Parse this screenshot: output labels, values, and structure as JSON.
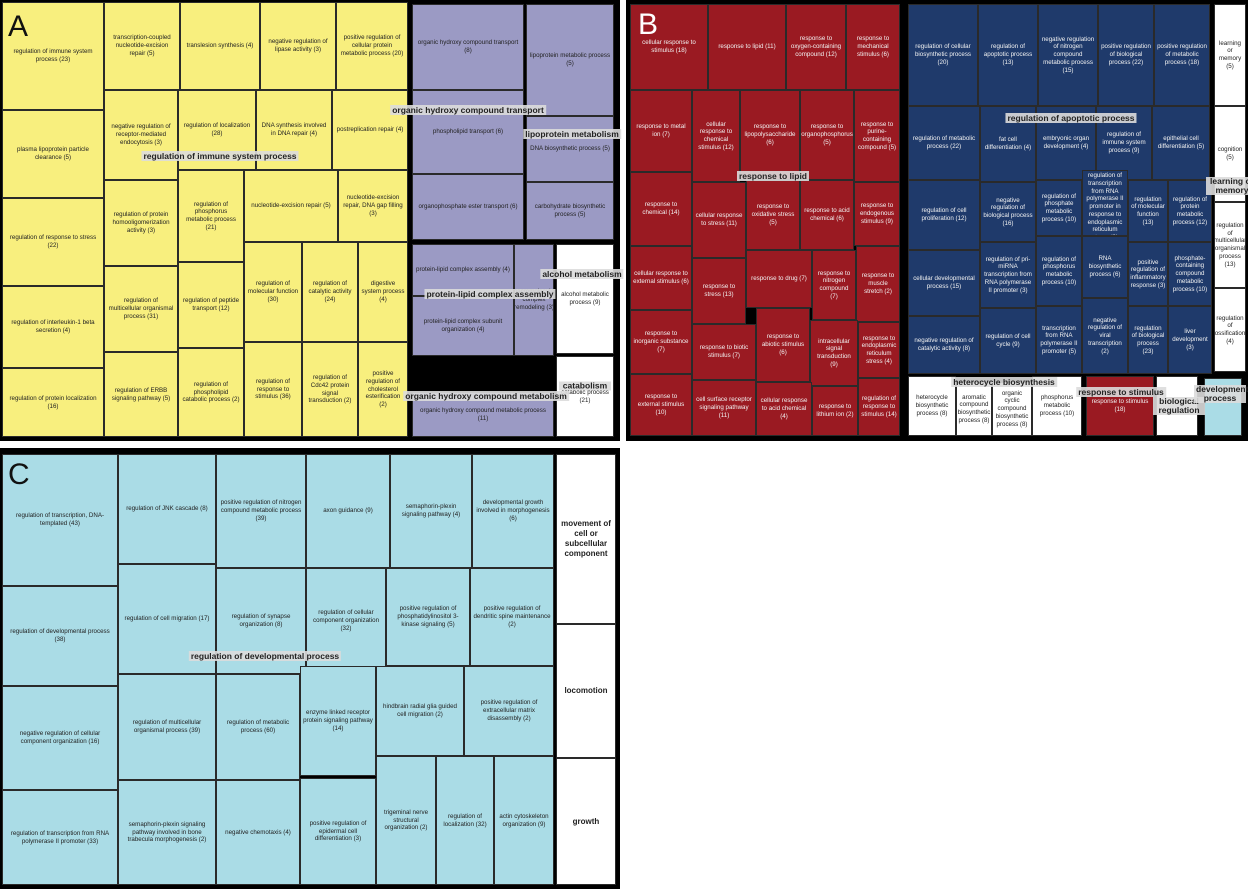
{
  "chart_data": [
    {
      "type": "treemap",
      "panel": "A",
      "cells": [
        {
          "label": "regulation of immune system process (23)",
          "color": "#f8ef7e"
        },
        {
          "label": "transcription-coupled nucleotide-excision repair (5)",
          "color": "#f8ef7e"
        },
        {
          "label": "translesion synthesis (4)",
          "color": "#f8ef7e"
        },
        {
          "label": "negative regulation of lipase activity (3)",
          "color": "#f8ef7e"
        },
        {
          "label": "positive regulation of cellular protein metabolic process (20)",
          "color": "#f8ef7e"
        },
        {
          "label": "plasma lipoprotein particle clearance (5)",
          "color": "#f8ef7e"
        },
        {
          "label": "negative regulation of receptor-mediated endocytosis (3)",
          "color": "#f8ef7e"
        },
        {
          "label": "regulation of localization (28)",
          "color": "#f8ef7e"
        },
        {
          "label": "DNA synthesis involved in DNA repair (4)",
          "color": "#f8ef7e"
        },
        {
          "label": "postreplication repair (4)",
          "color": "#f8ef7e"
        },
        {
          "label": "regulation of response to stress (22)",
          "color": "#f8ef7e"
        },
        {
          "label": "regulation of protein homooligomerization activity (3)",
          "color": "#f8ef7e"
        },
        {
          "label": "regulation of phosphorus metabolic process (21)",
          "color": "#f8ef7e"
        },
        {
          "label": "nucleotide-excision repair (5)",
          "color": "#f8ef7e"
        },
        {
          "label": "nucleotide-excision repair, DNA gap filling (3)",
          "color": "#f8ef7e"
        },
        {
          "label": "regulation of interleukin-1 beta secretion (4)",
          "color": "#f8ef7e"
        },
        {
          "label": "regulation of multicellular organismal process (31)",
          "color": "#f8ef7e"
        },
        {
          "label": "regulation of peptide transport (12)",
          "color": "#f8ef7e"
        },
        {
          "label": "regulation of molecular function (30)",
          "color": "#f8ef7e"
        },
        {
          "label": "regulation of catalytic activity (24)",
          "color": "#f8ef7e"
        },
        {
          "label": "digestive system process (4)",
          "color": "#f8ef7e"
        },
        {
          "label": "regulation of protein localization (16)",
          "color": "#f8ef7e"
        },
        {
          "label": "regulation of ERBB signaling pathway (5)",
          "color": "#f8ef7e"
        },
        {
          "label": "regulation of phospholipid catabolic process (2)",
          "color": "#f8ef7e"
        },
        {
          "label": "regulation of response to stimulus (36)",
          "color": "#f8ef7e"
        },
        {
          "label": "regulation of Cdc42 protein signal transduction (2)",
          "color": "#f8ef7e"
        },
        {
          "label": "positive regulation of cholesterol esterification (2)",
          "color": "#f8ef7e"
        },
        {
          "label": "organic hydroxy compound transport (8)",
          "color": "#9b9ac4"
        },
        {
          "label": "lipoprotein metabolic process (5)",
          "color": "#9b9ac4"
        },
        {
          "label": "phospholipid transport (6)",
          "color": "#9b9ac4"
        },
        {
          "label": "DNA biosynthetic process (5)",
          "color": "#9b9ac4"
        },
        {
          "label": "organophosphate ester transport (6)",
          "color": "#9b9ac4"
        },
        {
          "label": "carbohydrate biosynthetic process (5)",
          "color": "#9b9ac4"
        },
        {
          "label": "protein-lipid complex assembly (4)",
          "color": "#9b9ac4"
        },
        {
          "label": "macromolecular complex remodeling (3)",
          "color": "#9b9ac4"
        },
        {
          "label": "alcohol metabolic process (9)",
          "color": "#ffffff"
        },
        {
          "label": "protein-lipid complex subunit organization (4)",
          "color": "#9b9ac4"
        },
        {
          "label": "catabolic process (21)",
          "color": "#ffffff"
        },
        {
          "label": "organic hydroxy compound metabolic process (11)",
          "color": "#9b9ac4"
        }
      ],
      "groups": [
        "regulation of immune system process",
        "organic hydroxy compound transport",
        "lipoprotein metabolism",
        "protein-lipid complex assembly",
        "alcohol metabolism",
        "organic hydroxy compound metabolism",
        "catabolism"
      ]
    },
    {
      "type": "treemap",
      "panel": "B",
      "cells": [
        {
          "label": "cellular response to stimulus (18)",
          "color": "#9a1a22"
        },
        {
          "label": "response to lipid (11)",
          "color": "#9a1a22"
        },
        {
          "label": "response to oxygen-containing compound (12)",
          "color": "#9a1a22"
        },
        {
          "label": "response to mechanical stimulus (6)",
          "color": "#9a1a22"
        },
        {
          "label": "response to metal ion (7)",
          "color": "#9a1a22"
        },
        {
          "label": "cellular response to chemical stimulus (12)",
          "color": "#9a1a22"
        },
        {
          "label": "response to lipopolysaccharide (6)",
          "color": "#9a1a22"
        },
        {
          "label": "response to organophosphorus (5)",
          "color": "#9a1a22"
        },
        {
          "label": "response to purine-containing compound (5)",
          "color": "#9a1a22"
        },
        {
          "label": "response to chemical (14)",
          "color": "#9a1a22"
        },
        {
          "label": "cellular response to stress (11)",
          "color": "#9a1a22"
        },
        {
          "label": "response to oxidative stress (5)",
          "color": "#9a1a22"
        },
        {
          "label": "response to acid chemical (6)",
          "color": "#9a1a22"
        },
        {
          "label": "response to endogenous stimulus (9)",
          "color": "#9a1a22"
        },
        {
          "label": "cellular response to external stimulus (6)",
          "color": "#9a1a22"
        },
        {
          "label": "response to stress (13)",
          "color": "#9a1a22"
        },
        {
          "label": "response to drug (7)",
          "color": "#9a1a22"
        },
        {
          "label": "response to nitrogen compound (7)",
          "color": "#9a1a22"
        },
        {
          "label": "response to muscle stretch (2)",
          "color": "#9a1a22"
        },
        {
          "label": "response to inorganic substance (7)",
          "color": "#9a1a22"
        },
        {
          "label": "response to biotic stimulus (7)",
          "color": "#9a1a22"
        },
        {
          "label": "response to abiotic stimulus (6)",
          "color": "#9a1a22"
        },
        {
          "label": "intracellular signal transduction (9)",
          "color": "#9a1a22"
        },
        {
          "label": "response to endoplasmic reticulum stress (4)",
          "color": "#9a1a22"
        },
        {
          "label": "response to external stimulus (10)",
          "color": "#9a1a22"
        },
        {
          "label": "cell surface receptor signaling pathway (11)",
          "color": "#9a1a22"
        },
        {
          "label": "cellular response to acid chemical (4)",
          "color": "#9a1a22"
        },
        {
          "label": "response to lithium ion (2)",
          "color": "#9a1a22"
        },
        {
          "label": "regulation of response to stimulus (14)",
          "color": "#9a1a22"
        },
        {
          "label": "regulation of cellular biosynthetic process (20)",
          "color": "#1f3a6b"
        },
        {
          "label": "regulation of apoptotic process (13)",
          "color": "#1f3a6b"
        },
        {
          "label": "negative regulation of nitrogen compound metabolic process (15)",
          "color": "#1f3a6b"
        },
        {
          "label": "positive regulation of biological process (22)",
          "color": "#1f3a6b"
        },
        {
          "label": "positive regulation of metabolic process (18)",
          "color": "#1f3a6b"
        },
        {
          "label": "learning or memory (5)",
          "color": "#ffffff"
        },
        {
          "label": "regulation of metabolic process (22)",
          "color": "#1f3a6b"
        },
        {
          "label": "fat cell differentiation (4)",
          "color": "#1f3a6b"
        },
        {
          "label": "embryonic organ development (4)",
          "color": "#1f3a6b"
        },
        {
          "label": "regulation of immune system process (9)",
          "color": "#1f3a6b"
        },
        {
          "label": "epithelial cell differentiation (5)",
          "color": "#1f3a6b"
        },
        {
          "label": "cognition (5)",
          "color": "#ffffff"
        },
        {
          "label": "regulation of cell proliferation (12)",
          "color": "#1f3a6b"
        },
        {
          "label": "negative regulation of biological process (16)",
          "color": "#1f3a6b"
        },
        {
          "label": "regulation of phosphate metabolic process (10)",
          "color": "#1f3a6b"
        },
        {
          "label": "positive regulation of transcription from RNA polymerase II promoter in response to endoplasmic reticulum stress (2)",
          "color": "#1f3a6b"
        },
        {
          "label": "regulation of molecular function (13)",
          "color": "#1f3a6b"
        },
        {
          "label": "regulation of protein metabolic process (12)",
          "color": "#1f3a6b"
        },
        {
          "label": "regulation of multicellular organismal process (13)",
          "color": "#ffffff"
        },
        {
          "label": "cellular developmental process (15)",
          "color": "#1f3a6b"
        },
        {
          "label": "regulation of pri-miRNA transcription from RNA polymerase II promoter (3)",
          "color": "#1f3a6b"
        },
        {
          "label": "regulation of phosphorus metabolic process (10)",
          "color": "#1f3a6b"
        },
        {
          "label": "RNA biosynthetic process (6)",
          "color": "#1f3a6b"
        },
        {
          "label": "positive regulation of inflammatory response (3)",
          "color": "#1f3a6b"
        },
        {
          "label": "phosphate-containing compound metabolic process (10)",
          "color": "#1f3a6b"
        },
        {
          "label": "negative regulation of catalytic activity (8)",
          "color": "#1f3a6b"
        },
        {
          "label": "regulation of cell cycle (9)",
          "color": "#1f3a6b"
        },
        {
          "label": "transcription from RNA polymerase II promoter (5)",
          "color": "#1f3a6b"
        },
        {
          "label": "negative regulation of viral transcription (2)",
          "color": "#1f3a6b"
        },
        {
          "label": "regulation of biological process (23)",
          "color": "#1f3a6b"
        },
        {
          "label": "liver development (3)",
          "color": "#1f3a6b"
        },
        {
          "label": "regulation of ossification (4)",
          "color": "#ffffff"
        },
        {
          "label": "heterocycle biosynthetic process (8)",
          "color": "#ffffff"
        },
        {
          "label": "aromatic compound biosynthetic process (8)",
          "color": "#ffffff"
        },
        {
          "label": "organic cyclic compound biosynthetic process (8)",
          "color": "#ffffff"
        },
        {
          "label": "phosphorus metabolic process (10)",
          "color": "#ffffff"
        },
        {
          "label": "response to stimulus (18)",
          "color": "#9a1a22"
        },
        {
          "label": "",
          "color": "#ffffff"
        },
        {
          "label": "",
          "color": "#aadce6"
        }
      ],
      "groups": [
        "response to lipid",
        "regulation of apoptotic process",
        "learning or memory",
        "heterocycle biosynthesis",
        "response to stimulus",
        "biological regulation",
        "developmental process"
      ]
    },
    {
      "type": "treemap",
      "panel": "C",
      "cells": [
        {
          "label": "regulation of transcription, DNA-templated (43)",
          "color": "#aadce6"
        },
        {
          "label": "regulation of JNK cascade (8)",
          "color": "#aadce6"
        },
        {
          "label": "positive regulation of nitrogen compound metabolic process (39)",
          "color": "#aadce6"
        },
        {
          "label": "axon guidance (9)",
          "color": "#aadce6"
        },
        {
          "label": "semaphorin-plexin signaling pathway (4)",
          "color": "#aadce6"
        },
        {
          "label": "developmental growth involved in morphogenesis (6)",
          "color": "#aadce6"
        },
        {
          "label": "movement of cell or subcellular component",
          "color": "#ffffff"
        },
        {
          "label": "regulation of developmental process (38)",
          "color": "#aadce6"
        },
        {
          "label": "regulation of cell migration (17)",
          "color": "#aadce6"
        },
        {
          "label": "regulation of synapse organization (8)",
          "color": "#aadce6"
        },
        {
          "label": "regulation of cellular component organization (32)",
          "color": "#aadce6"
        },
        {
          "label": "positive regulation of phosphatidylinositol 3-kinase signaling (5)",
          "color": "#aadce6"
        },
        {
          "label": "positive regulation of dendritic spine maintenance (2)",
          "color": "#aadce6"
        },
        {
          "label": "locomotion",
          "color": "#ffffff"
        },
        {
          "label": "negative regulation of cellular component organization (16)",
          "color": "#aadce6"
        },
        {
          "label": "regulation of multicellular organismal process (39)",
          "color": "#aadce6"
        },
        {
          "label": "regulation of metabolic process (60)",
          "color": "#aadce6"
        },
        {
          "label": "enzyme linked receptor protein signaling pathway (14)",
          "color": "#aadce6"
        },
        {
          "label": "hindbrain radial glia guided cell migration (2)",
          "color": "#aadce6"
        },
        {
          "label": "positive regulation of extracellular matrix disassembly (2)",
          "color": "#aadce6"
        },
        {
          "label": "regulation of transcription from RNA polymerase II promoter (33)",
          "color": "#aadce6"
        },
        {
          "label": "semaphorin-plexin signaling pathway involved in bone trabecula morphogenesis (2)",
          "color": "#aadce6"
        },
        {
          "label": "negative chemotaxis (4)",
          "color": "#aadce6"
        },
        {
          "label": "positive regulation of epidermal cell differentiation (3)",
          "color": "#aadce6"
        },
        {
          "label": "trigeminal nerve structural organization (2)",
          "color": "#aadce6"
        },
        {
          "label": "regulation of localization (32)",
          "color": "#aadce6"
        },
        {
          "label": "actin cytoskeleton organization (9)",
          "color": "#aadce6"
        },
        {
          "label": "growth",
          "color": "#ffffff"
        }
      ],
      "groups": [
        "regulation of developmental process"
      ]
    }
  ],
  "panels": {
    "a": "A",
    "b": "B",
    "c": "C"
  }
}
